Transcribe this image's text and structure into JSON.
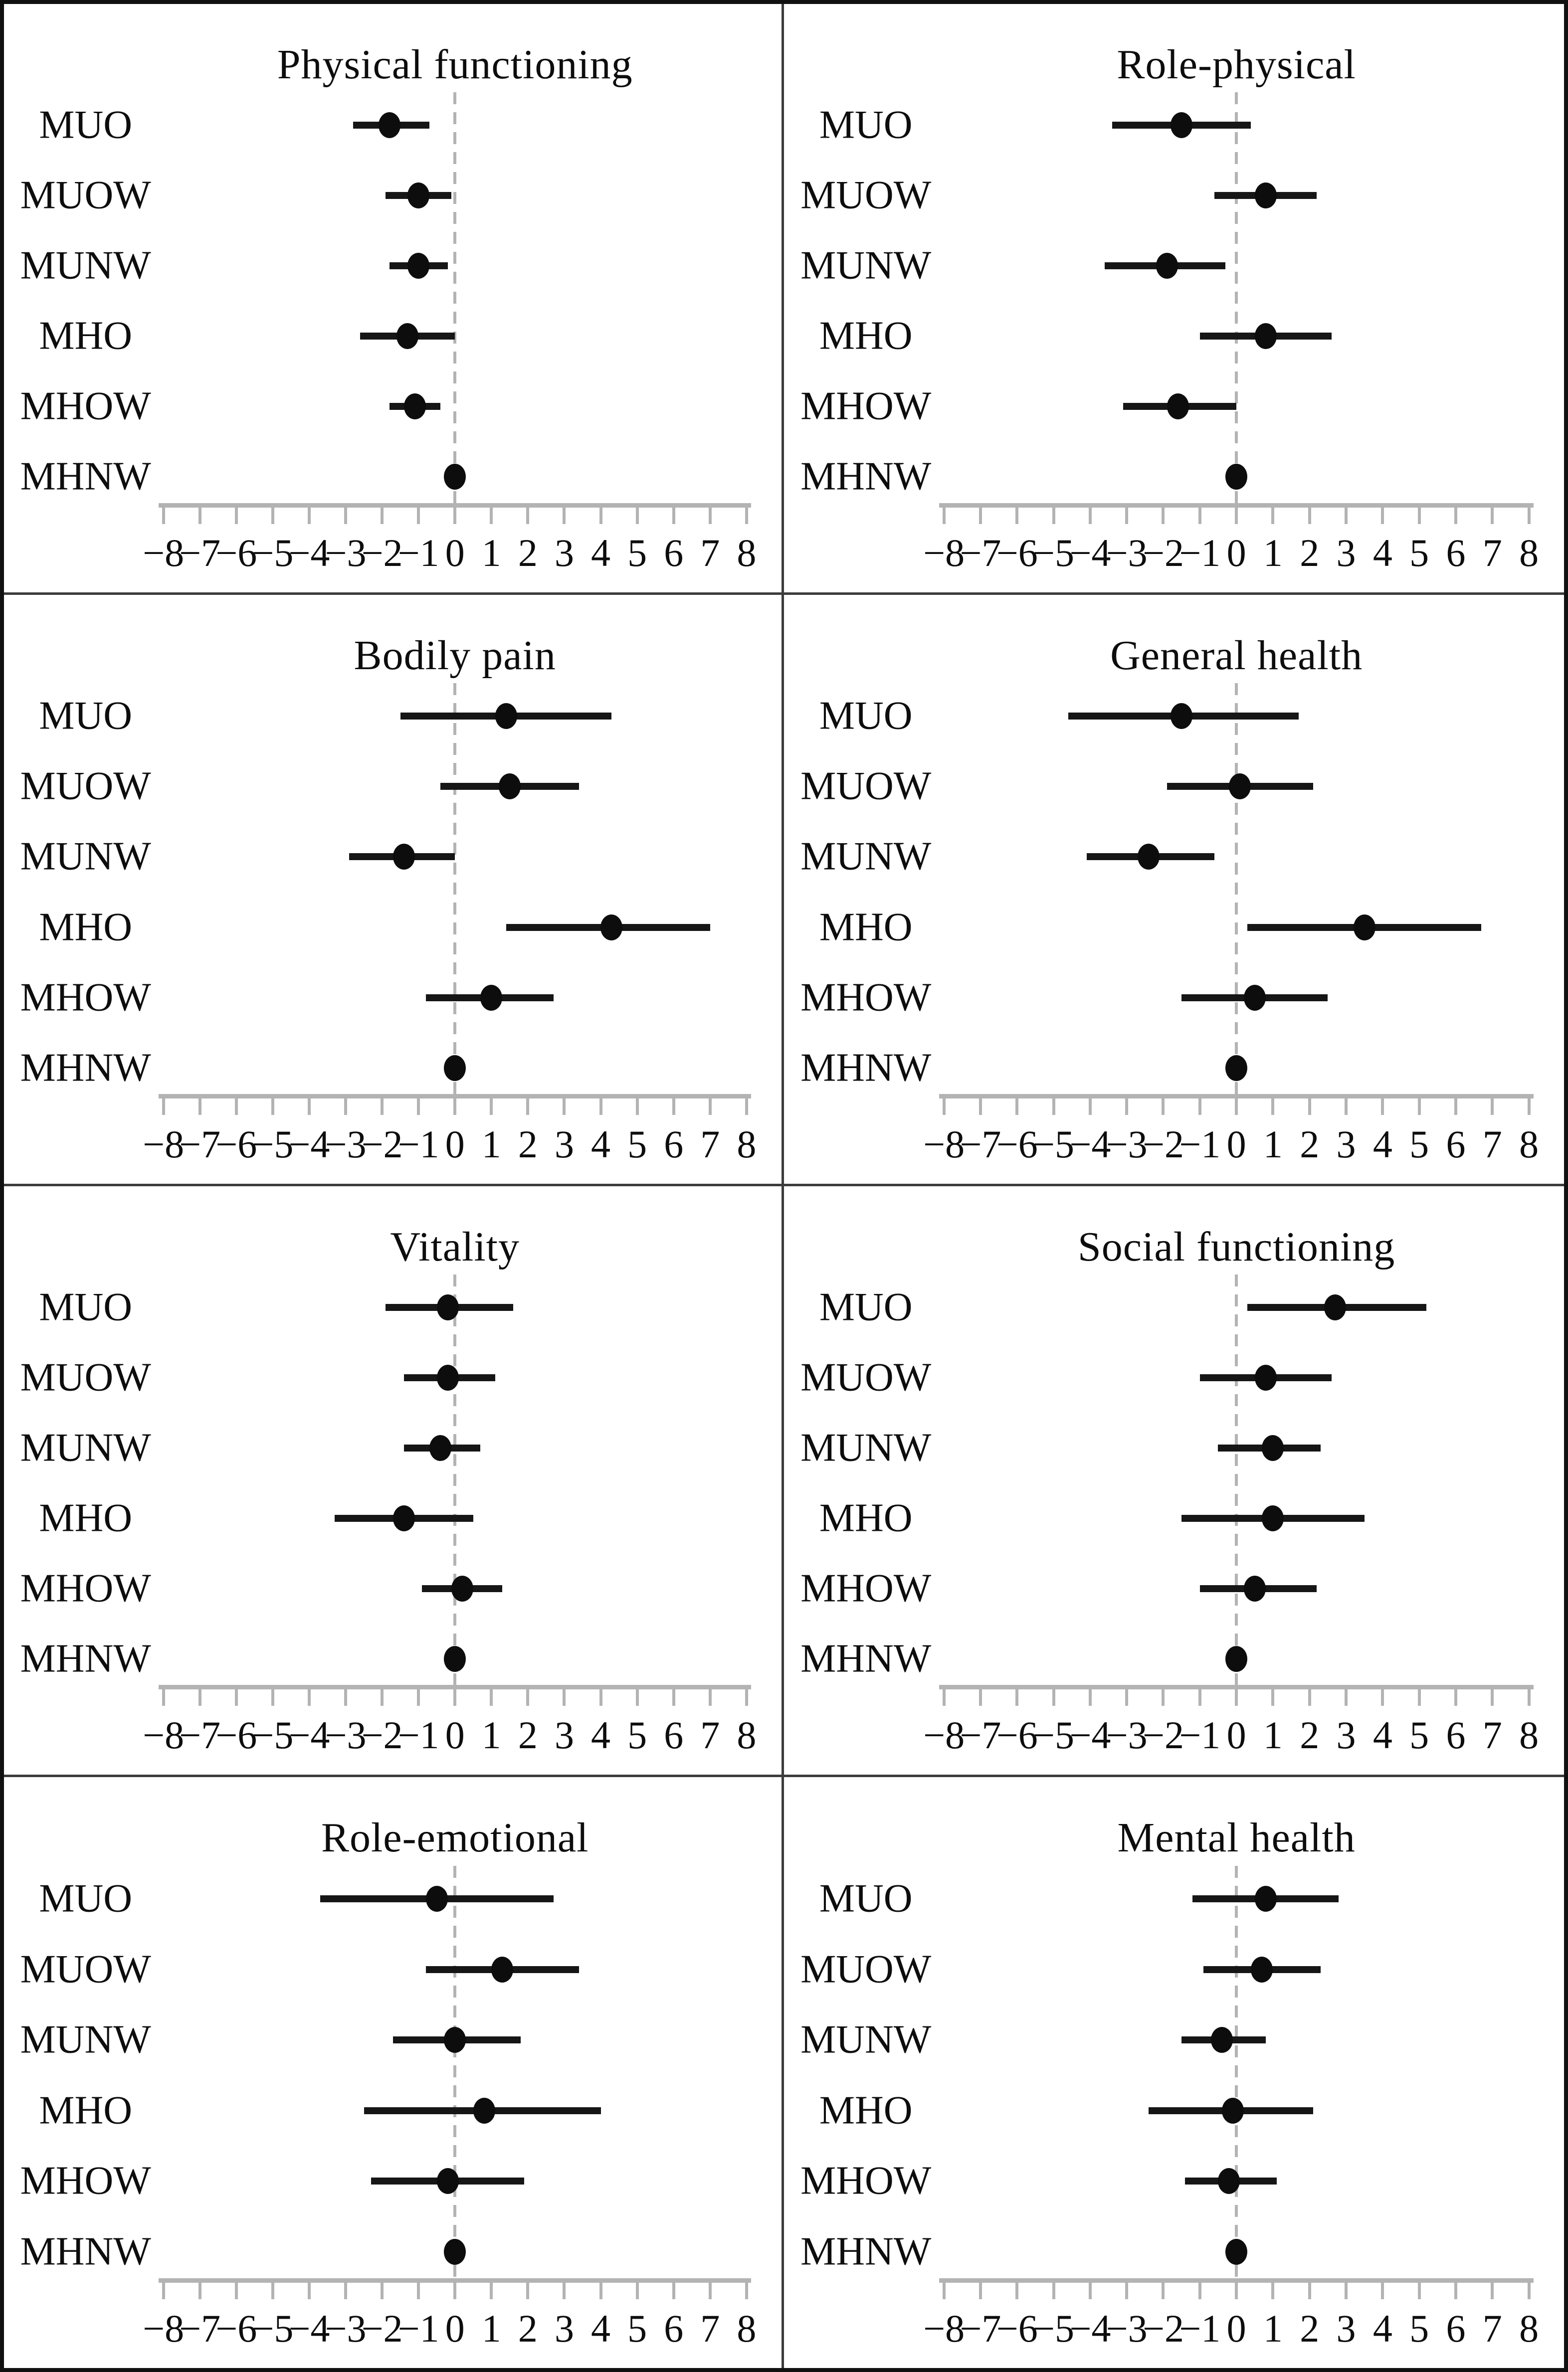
{
  "figure_meta": {
    "categories": [
      "MUO",
      "MUOW",
      "MUNW",
      "MHO",
      "MHOW",
      "MHNW"
    ],
    "colors": {
      "point_and_ci": "#0d0d0d",
      "axis_gray": "#b3b3b3",
      "refline_gray": "#b3b3b3",
      "panel_divider": "#3c3c3c",
      "outer_border": "#111111",
      "background": "#ffffff"
    }
  },
  "chart_data": [
    {
      "type": "scatter",
      "title": "Physical functioning",
      "xlabel": "",
      "xlim": [
        -8,
        8
      ],
      "xticks": [
        -8,
        -7,
        -6,
        -5,
        -4,
        -3,
        -2,
        -1,
        0,
        1,
        2,
        3,
        4,
        5,
        6,
        7,
        8
      ],
      "xtick_labels": [
        "−8",
        "−7",
        "−6",
        "−5",
        "−4",
        "−3",
        "−2",
        "−1",
        "0",
        "1",
        "2",
        "3",
        "4",
        "5",
        "6",
        "7",
        "8"
      ],
      "refline_x": 0,
      "grid": false,
      "legend": false,
      "categories": [
        "MUO",
        "MUOW",
        "MUNW",
        "MHO",
        "MHOW",
        "MHNW"
      ],
      "points": [
        {
          "label": "MUO",
          "x": -1.8,
          "ci_low": -2.8,
          "ci_high": -0.7
        },
        {
          "label": "MUOW",
          "x": -1.0,
          "ci_low": -1.9,
          "ci_high": -0.1
        },
        {
          "label": "MUNW",
          "x": -1.0,
          "ci_low": -1.8,
          "ci_high": -0.2
        },
        {
          "label": "MHO",
          "x": -1.3,
          "ci_low": -2.6,
          "ci_high": 0.0
        },
        {
          "label": "MHOW",
          "x": -1.1,
          "ci_low": -1.8,
          "ci_high": -0.4
        },
        {
          "label": "MHNW",
          "x": 0.0,
          "ci_low": 0.0,
          "ci_high": 0.0
        }
      ]
    },
    {
      "type": "scatter",
      "title": "Role-physical",
      "xlabel": "",
      "xlim": [
        -8,
        8
      ],
      "xticks": [
        -8,
        -7,
        -6,
        -5,
        -4,
        -3,
        -2,
        -1,
        0,
        1,
        2,
        3,
        4,
        5,
        6,
        7,
        8
      ],
      "xtick_labels": [
        "−8",
        "−7",
        "−6",
        "−5",
        "−4",
        "−3",
        "−2",
        "−1",
        "0",
        "1",
        "2",
        "3",
        "4",
        "5",
        "6",
        "7",
        "8"
      ],
      "refline_x": 0,
      "grid": false,
      "legend": false,
      "categories": [
        "MUO",
        "MUOW",
        "MUNW",
        "MHO",
        "MHOW",
        "MHNW"
      ],
      "points": [
        {
          "label": "MUO",
          "x": -1.5,
          "ci_low": -3.4,
          "ci_high": 0.4
        },
        {
          "label": "MUOW",
          "x": 0.8,
          "ci_low": -0.6,
          "ci_high": 2.2
        },
        {
          "label": "MUNW",
          "x": -1.9,
          "ci_low": -3.6,
          "ci_high": -0.3
        },
        {
          "label": "MHO",
          "x": 0.8,
          "ci_low": -1.0,
          "ci_high": 2.6
        },
        {
          "label": "MHOW",
          "x": -1.6,
          "ci_low": -3.1,
          "ci_high": 0.0
        },
        {
          "label": "MHNW",
          "x": 0.0,
          "ci_low": 0.0,
          "ci_high": 0.0
        }
      ]
    },
    {
      "type": "scatter",
      "title": "Bodily pain",
      "xlabel": "",
      "xlim": [
        -8,
        8
      ],
      "xticks": [
        -8,
        -7,
        -6,
        -5,
        -4,
        -3,
        -2,
        -1,
        0,
        1,
        2,
        3,
        4,
        5,
        6,
        7,
        8
      ],
      "xtick_labels": [
        "−8",
        "−7",
        "−6",
        "−5",
        "−4",
        "−3",
        "−2",
        "−1",
        "0",
        "1",
        "2",
        "3",
        "4",
        "5",
        "6",
        "7",
        "8"
      ],
      "refline_x": 0,
      "grid": false,
      "legend": false,
      "categories": [
        "MUO",
        "MUOW",
        "MUNW",
        "MHO",
        "MHOW",
        "MHNW"
      ],
      "points": [
        {
          "label": "MUO",
          "x": 1.4,
          "ci_low": -1.5,
          "ci_high": 4.3
        },
        {
          "label": "MUOW",
          "x": 1.5,
          "ci_low": -0.4,
          "ci_high": 3.4
        },
        {
          "label": "MUNW",
          "x": -1.4,
          "ci_low": -2.9,
          "ci_high": 0.0
        },
        {
          "label": "MHO",
          "x": 4.3,
          "ci_low": 1.4,
          "ci_high": 7.0
        },
        {
          "label": "MHOW",
          "x": 1.0,
          "ci_low": -0.8,
          "ci_high": 2.7
        },
        {
          "label": "MHNW",
          "x": 0.0,
          "ci_low": 0.0,
          "ci_high": 0.0
        }
      ]
    },
    {
      "type": "scatter",
      "title": "General health",
      "xlabel": "",
      "xlim": [
        -8,
        8
      ],
      "xticks": [
        -8,
        -7,
        -6,
        -5,
        -4,
        -3,
        -2,
        -1,
        0,
        1,
        2,
        3,
        4,
        5,
        6,
        7,
        8
      ],
      "xtick_labels": [
        "−8",
        "−7",
        "−6",
        "−5",
        "−4",
        "−3",
        "−2",
        "−1",
        "0",
        "1",
        "2",
        "3",
        "4",
        "5",
        "6",
        "7",
        "8"
      ],
      "refline_x": 0,
      "grid": false,
      "legend": false,
      "categories": [
        "MUO",
        "MUOW",
        "MUNW",
        "MHO",
        "MHOW",
        "MHNW"
      ],
      "points": [
        {
          "label": "MUO",
          "x": -1.5,
          "ci_low": -4.6,
          "ci_high": 1.7
        },
        {
          "label": "MUOW",
          "x": 0.1,
          "ci_low": -1.9,
          "ci_high": 2.1
        },
        {
          "label": "MUNW",
          "x": -2.4,
          "ci_low": -4.1,
          "ci_high": -0.6
        },
        {
          "label": "MHO",
          "x": 3.5,
          "ci_low": 0.3,
          "ci_high": 6.7
        },
        {
          "label": "MHOW",
          "x": 0.5,
          "ci_low": -1.5,
          "ci_high": 2.5
        },
        {
          "label": "MHNW",
          "x": 0.0,
          "ci_low": 0.0,
          "ci_high": 0.0
        }
      ]
    },
    {
      "type": "scatter",
      "title": "Vitality",
      "xlabel": "",
      "xlim": [
        -8,
        8
      ],
      "xticks": [
        -8,
        -7,
        -6,
        -5,
        -4,
        -3,
        -2,
        -1,
        0,
        1,
        2,
        3,
        4,
        5,
        6,
        7,
        8
      ],
      "xtick_labels": [
        "−8",
        "−7",
        "−6",
        "−5",
        "−4",
        "−3",
        "−2",
        "−1",
        "0",
        "1",
        "2",
        "3",
        "4",
        "5",
        "6",
        "7",
        "8"
      ],
      "refline_x": 0,
      "grid": false,
      "legend": false,
      "categories": [
        "MUO",
        "MUOW",
        "MUNW",
        "MHO",
        "MHOW",
        "MHNW"
      ],
      "points": [
        {
          "label": "MUO",
          "x": -0.2,
          "ci_low": -1.9,
          "ci_high": 1.6
        },
        {
          "label": "MUOW",
          "x": -0.2,
          "ci_low": -1.4,
          "ci_high": 1.1
        },
        {
          "label": "MUNW",
          "x": -0.4,
          "ci_low": -1.4,
          "ci_high": 0.7
        },
        {
          "label": "MHO",
          "x": -1.4,
          "ci_low": -3.3,
          "ci_high": 0.5
        },
        {
          "label": "MHOW",
          "x": 0.2,
          "ci_low": -0.9,
          "ci_high": 1.3
        },
        {
          "label": "MHNW",
          "x": 0.0,
          "ci_low": 0.0,
          "ci_high": 0.0
        }
      ]
    },
    {
      "type": "scatter",
      "title": "Social functioning",
      "xlabel": "",
      "xlim": [
        -8,
        8
      ],
      "xticks": [
        -8,
        -7,
        -6,
        -5,
        -4,
        -3,
        -2,
        -1,
        0,
        1,
        2,
        3,
        4,
        5,
        6,
        7,
        8
      ],
      "xtick_labels": [
        "−8",
        "−7",
        "−6",
        "−5",
        "−4",
        "−3",
        "−2",
        "−1",
        "0",
        "1",
        "2",
        "3",
        "4",
        "5",
        "6",
        "7",
        "8"
      ],
      "refline_x": 0,
      "grid": false,
      "legend": false,
      "categories": [
        "MUO",
        "MUOW",
        "MUNW",
        "MHO",
        "MHOW",
        "MHNW"
      ],
      "points": [
        {
          "label": "MUO",
          "x": 2.7,
          "ci_low": 0.3,
          "ci_high": 5.2
        },
        {
          "label": "MUOW",
          "x": 0.8,
          "ci_low": -1.0,
          "ci_high": 2.6
        },
        {
          "label": "MUNW",
          "x": 1.0,
          "ci_low": -0.5,
          "ci_high": 2.3
        },
        {
          "label": "MHO",
          "x": 1.0,
          "ci_low": -1.5,
          "ci_high": 3.5
        },
        {
          "label": "MHOW",
          "x": 0.5,
          "ci_low": -1.0,
          "ci_high": 2.2
        },
        {
          "label": "MHNW",
          "x": 0.0,
          "ci_low": 0.0,
          "ci_high": 0.0
        }
      ]
    },
    {
      "type": "scatter",
      "title": "Role-emotional",
      "xlabel": "",
      "xlim": [
        -8,
        8
      ],
      "xticks": [
        -8,
        -7,
        -6,
        -5,
        -4,
        -3,
        -2,
        -1,
        0,
        1,
        2,
        3,
        4,
        5,
        6,
        7,
        8
      ],
      "xtick_labels": [
        "−8",
        "−7",
        "−6",
        "−5",
        "−4",
        "−3",
        "−2",
        "−1",
        "0",
        "1",
        "2",
        "3",
        "4",
        "5",
        "6",
        "7",
        "8"
      ],
      "refline_x": 0,
      "grid": false,
      "legend": false,
      "categories": [
        "MUO",
        "MUOW",
        "MUNW",
        "MHO",
        "MHOW",
        "MHNW"
      ],
      "points": [
        {
          "label": "MUO",
          "x": -0.5,
          "ci_low": -3.7,
          "ci_high": 2.7
        },
        {
          "label": "MUOW",
          "x": 1.3,
          "ci_low": -0.8,
          "ci_high": 3.4
        },
        {
          "label": "MUNW",
          "x": 0.0,
          "ci_low": -1.7,
          "ci_high": 1.8
        },
        {
          "label": "MHO",
          "x": 0.8,
          "ci_low": -2.5,
          "ci_high": 4.0
        },
        {
          "label": "MHOW",
          "x": -0.2,
          "ci_low": -2.3,
          "ci_high": 1.9
        },
        {
          "label": "MHNW",
          "x": 0.0,
          "ci_low": 0.0,
          "ci_high": 0.0
        }
      ]
    },
    {
      "type": "scatter",
      "title": "Mental health",
      "xlabel": "",
      "xlim": [
        -8,
        8
      ],
      "xticks": [
        -8,
        -7,
        -6,
        -5,
        -4,
        -3,
        -2,
        -1,
        0,
        1,
        2,
        3,
        4,
        5,
        6,
        7,
        8
      ],
      "xtick_labels": [
        "−8",
        "−7",
        "−6",
        "−5",
        "−4",
        "−3",
        "−2",
        "−1",
        "0",
        "1",
        "2",
        "3",
        "4",
        "5",
        "6",
        "7",
        "8"
      ],
      "refline_x": 0,
      "grid": false,
      "legend": false,
      "categories": [
        "MUO",
        "MUOW",
        "MUNW",
        "MHO",
        "MHOW",
        "MHNW"
      ],
      "points": [
        {
          "label": "MUO",
          "x": 0.8,
          "ci_low": -1.2,
          "ci_high": 2.8
        },
        {
          "label": "MUOW",
          "x": 0.7,
          "ci_low": -0.9,
          "ci_high": 2.3
        },
        {
          "label": "MUNW",
          "x": -0.4,
          "ci_low": -1.5,
          "ci_high": 0.8
        },
        {
          "label": "MHO",
          "x": -0.1,
          "ci_low": -2.4,
          "ci_high": 2.1
        },
        {
          "label": "MHOW",
          "x": -0.2,
          "ci_low": -1.4,
          "ci_high": 1.1
        },
        {
          "label": "MHNW",
          "x": 0.0,
          "ci_low": 0.0,
          "ci_high": 0.0
        }
      ]
    }
  ]
}
